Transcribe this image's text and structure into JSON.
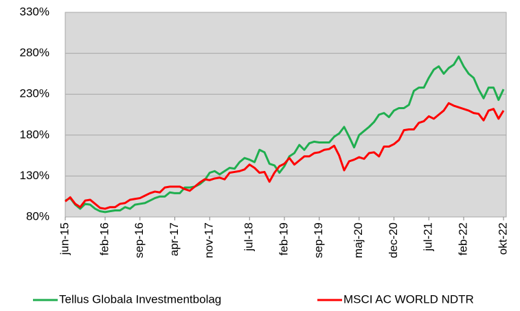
{
  "chart_data": {
    "type": "line",
    "categories": [
      "jun-15",
      null,
      null,
      null,
      null,
      null,
      null,
      null,
      "feb-16",
      null,
      null,
      null,
      null,
      null,
      null,
      "sep-16",
      null,
      null,
      null,
      null,
      null,
      null,
      "apr-17",
      null,
      null,
      null,
      null,
      null,
      null,
      "nov-17",
      null,
      null,
      null,
      null,
      null,
      null,
      null,
      "jul-18",
      null,
      null,
      null,
      null,
      null,
      null,
      "feb-19",
      null,
      null,
      null,
      null,
      null,
      null,
      "sep-19",
      null,
      null,
      null,
      null,
      null,
      null,
      null,
      "maj-20",
      null,
      null,
      null,
      null,
      null,
      null,
      "dec-20",
      null,
      null,
      null,
      null,
      null,
      null,
      "jul-21",
      null,
      null,
      null,
      null,
      null,
      null,
      "feb-22",
      null,
      null,
      null,
      null,
      null,
      null,
      null,
      "okt-22"
    ],
    "series": [
      {
        "name": "Tellus Globala Investmentbolag",
        "color": "#1fae4f",
        "values": [
          100,
          103,
          95,
          90,
          96,
          95,
          90,
          87,
          86,
          87,
          88,
          88,
          92,
          90,
          95,
          96,
          97,
          100,
          103,
          105,
          105,
          110,
          109,
          109,
          116,
          116,
          117,
          120,
          125,
          134,
          136,
          132,
          136,
          140,
          139,
          147,
          152,
          150,
          147,
          162,
          159,
          145,
          143,
          134,
          142,
          154,
          158,
          168,
          162,
          170,
          172,
          171,
          171,
          171,
          178,
          182,
          190,
          178,
          165,
          180,
          185,
          190,
          196,
          205,
          207,
          202,
          210,
          213,
          213,
          217,
          234,
          238,
          238,
          250,
          260,
          264,
          255,
          262,
          266,
          276,
          264,
          255,
          250,
          236,
          225,
          238,
          238,
          223,
          236
        ]
      },
      {
        "name": "MSCI AC WORLD NDTR",
        "color": "#ff0000",
        "values": [
          99,
          104,
          96,
          92,
          100,
          101,
          96,
          91,
          90,
          92,
          92,
          96,
          97,
          101,
          102,
          103,
          106,
          109,
          111,
          110,
          116,
          117,
          117,
          117,
          114,
          112,
          117,
          122,
          126,
          125,
          127,
          128,
          126,
          134,
          135,
          136,
          138,
          144,
          140,
          134,
          135,
          123,
          134,
          142,
          145,
          152,
          144,
          149,
          154,
          154,
          158,
          159,
          162,
          163,
          167,
          155,
          137,
          148,
          150,
          153,
          151,
          158,
          159,
          154,
          166,
          166,
          169,
          174,
          186,
          187,
          187,
          195,
          197,
          203,
          200,
          205,
          210,
          219,
          216,
          214,
          212,
          210,
          207,
          206,
          198,
          210,
          212,
          200,
          210
        ]
      }
    ],
    "ylim": [
      80,
      330
    ],
    "yticks": [
      {
        "value": 80,
        "label": "80%"
      },
      {
        "value": 130,
        "label": "130%"
      },
      {
        "value": 180,
        "label": "180%"
      },
      {
        "value": 230,
        "label": "230%"
      },
      {
        "value": 280,
        "label": "280%"
      },
      {
        "value": 330,
        "label": "330%"
      }
    ],
    "grid": true,
    "legend": "bottom"
  }
}
